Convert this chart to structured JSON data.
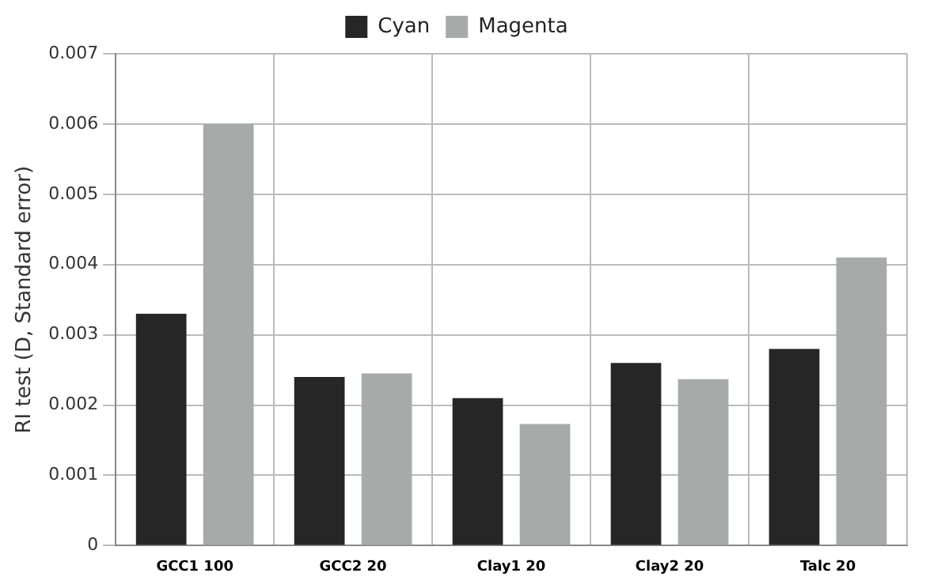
{
  "chart_data": {
    "type": "bar",
    "ylabel": "RI test (D, Standard error)",
    "categories": [
      "GCC1 100",
      "GCC2 20",
      "Clay1 20",
      "Clay2 20",
      "Talc 20"
    ],
    "series": [
      {
        "name": "Cyan",
        "color": "#262626",
        "values": [
          0.0033,
          0.0024,
          0.0021,
          0.0026,
          0.0028
        ]
      },
      {
        "name": "Magenta",
        "color": "#a6aaa9",
        "values": [
          0.006,
          0.00245,
          0.00173,
          0.00237,
          0.0041
        ]
      }
    ],
    "ylim": [
      0,
      0.007
    ],
    "yticks": [
      0,
      0.001,
      0.002,
      0.003,
      0.004,
      0.005,
      0.006,
      0.007
    ],
    "grid": true,
    "legend": "top"
  }
}
